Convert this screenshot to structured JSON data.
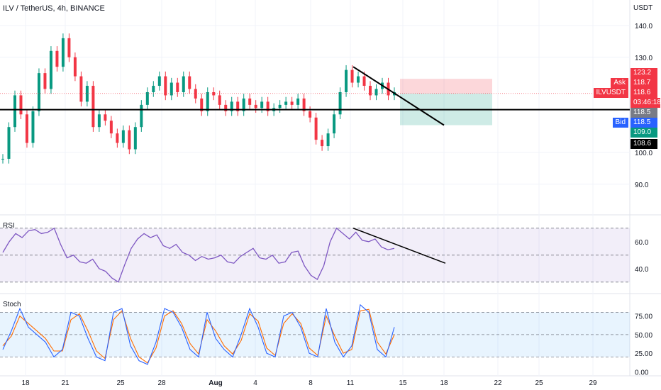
{
  "chart_data": {
    "type": "candlestick",
    "title": "ILV / TetherUS, 4h, BINANCE",
    "price_unit": "USDT",
    "price_ticks": [
      140.0,
      130.0,
      100.0,
      90.0
    ],
    "x_ticks": [
      "18",
      "21",
      "25",
      "28",
      "Aug",
      "4",
      "8",
      "11",
      "15",
      "18",
      "22",
      "25",
      "29"
    ],
    "ohlc_close_series": [
      98,
      108,
      118,
      112,
      103,
      113,
      125,
      120,
      132,
      127,
      136,
      130,
      124,
      116,
      121,
      108,
      112,
      110,
      106,
      103,
      107,
      101,
      108,
      115,
      119,
      121,
      124,
      118,
      122,
      119,
      124,
      120,
      117,
      113,
      119,
      118,
      115,
      113,
      116,
      113,
      117,
      115,
      114,
      116,
      113,
      114,
      115,
      116,
      115,
      117,
      113,
      111,
      104,
      102,
      106,
      112,
      119,
      126,
      122,
      124,
      121,
      118,
      120,
      122,
      118,
      119
    ],
    "support_line": 113.5,
    "downtrend_line": {
      "from": 127.0,
      "to": 108.6
    },
    "position": {
      "entry": 118.6,
      "target": 108.6,
      "stop": 123.2
    },
    "markers": [
      {
        "label": "",
        "value": "123.2",
        "color": "#f23645"
      },
      {
        "label": "Ask",
        "value": "118.7",
        "color": "#f23645"
      },
      {
        "label": "ILVUSDT",
        "value": "118.6",
        "sub": "03:46:18",
        "color": "#f23645"
      },
      {
        "label": "",
        "value": "118.5",
        "color": "#787b86"
      },
      {
        "label": "Bid",
        "value": "118.5",
        "color": "#2962ff"
      },
      {
        "label": "",
        "value": "109.0",
        "color": "#089981"
      },
      {
        "label": "",
        "value": "108.6",
        "color": "#000000"
      }
    ],
    "rsi": {
      "label": "RSI",
      "ticks": [
        60.0,
        40.0
      ],
      "levels": [
        70,
        50,
        30
      ],
      "values": [
        52,
        60,
        66,
        63,
        68,
        69,
        66,
        67,
        70,
        58,
        48,
        50,
        45,
        44,
        47,
        40,
        38,
        33,
        30,
        43,
        55,
        62,
        66,
        63,
        65,
        57,
        55,
        58,
        52,
        50,
        46,
        49,
        47,
        48,
        50,
        45,
        44,
        49,
        52,
        55,
        48,
        47,
        50,
        44,
        45,
        52,
        53,
        42,
        35,
        32,
        42,
        60,
        70,
        66,
        62,
        67,
        61,
        60,
        62,
        56,
        54,
        55
      ]
    },
    "stoch": {
      "label": "Stoch",
      "ticks": [
        75.0,
        50.0,
        25.0,
        0.0
      ],
      "levels": [
        80,
        50,
        20
      ],
      "k": [
        30,
        55,
        85,
        60,
        50,
        40,
        20,
        30,
        80,
        75,
        45,
        20,
        15,
        80,
        85,
        35,
        15,
        10,
        40,
        85,
        80,
        60,
        30,
        20,
        80,
        45,
        30,
        20,
        50,
        85,
        60,
        25,
        20,
        75,
        80,
        60,
        25,
        20,
        85,
        40,
        20,
        35,
        90,
        80,
        30,
        20,
        60
      ],
      "d": [
        35,
        48,
        75,
        65,
        55,
        45,
        28,
        28,
        70,
        78,
        55,
        28,
        18,
        70,
        82,
        45,
        20,
        12,
        32,
        75,
        82,
        65,
        38,
        24,
        70,
        55,
        35,
        24,
        42,
        78,
        68,
        32,
        22,
        65,
        78,
        65,
        32,
        22,
        75,
        48,
        25,
        30,
        82,
        84,
        40,
        24,
        50
      ]
    }
  }
}
